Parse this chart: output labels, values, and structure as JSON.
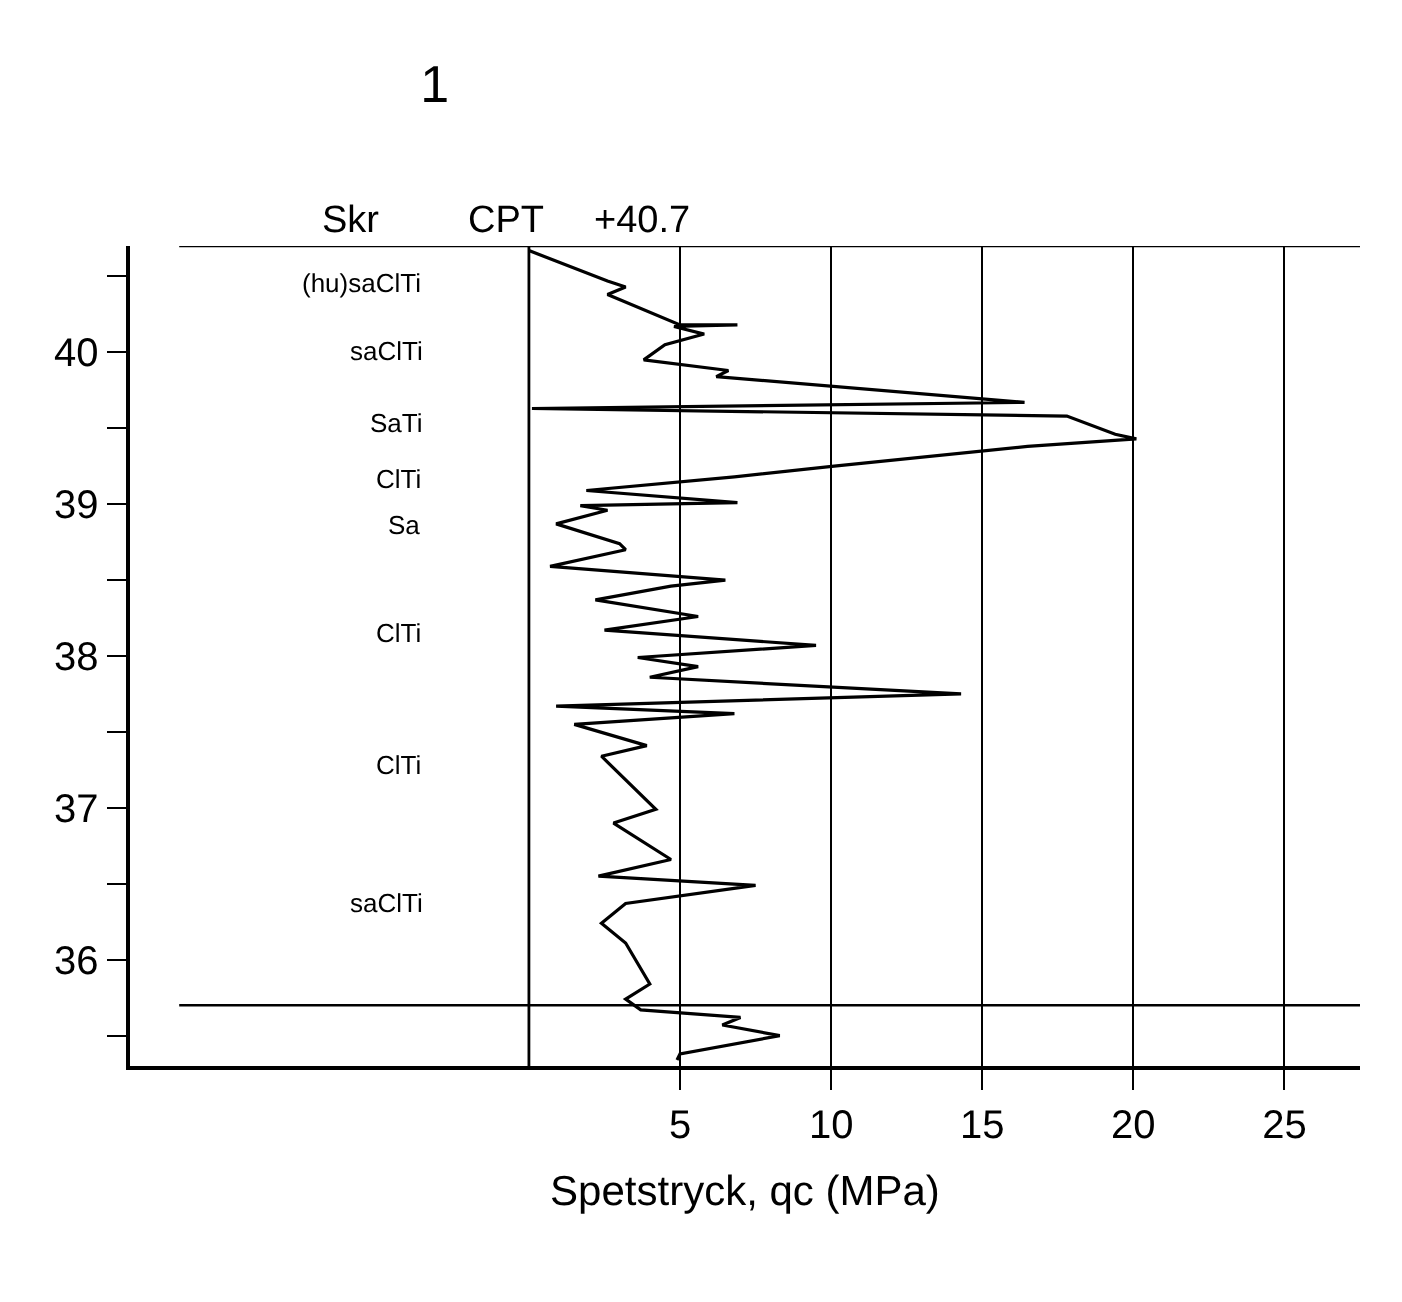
{
  "chart_data": {
    "type": "line",
    "title": "1",
    "xlabel": "Spetstryck, qc (MPa)",
    "xlim": [
      -13.2,
      27.5
    ],
    "xticks": [
      5,
      10,
      15,
      20,
      25
    ],
    "ylim": [
      35.3,
      40.7
    ],
    "yticks": [
      {
        "value": 35.5,
        "label": null
      },
      36,
      {
        "value": 36.5,
        "label": null
      },
      37,
      {
        "value": 37.5,
        "label": null
      },
      38,
      {
        "value": 38.5,
        "label": null
      },
      39,
      {
        "value": 39.5,
        "label": null
      },
      40,
      {
        "value": 40.5,
        "label": null
      }
    ],
    "grid": "x",
    "marker": "none",
    "line_style": "solid",
    "series": [
      {
        "color": "#000000",
        "x": [
          0,
          2.6,
          3.2,
          2.6,
          5.0,
          6.9,
          4.8,
          5.8,
          4.5,
          3.8,
          6.6,
          6.2,
          16.4,
          0.1,
          17.8,
          19.4,
          20.1,
          16.5,
          10.1,
          6.8,
          1.9,
          6.9,
          1.7,
          2.6,
          0.9,
          3.0,
          3.2,
          0.7,
          6.5,
          4.7,
          2.2,
          5.6,
          2.5,
          9.5,
          3.6,
          5.6,
          4.0,
          14.3,
          0.9,
          6.8,
          1.5,
          3.9,
          2.4,
          4.2,
          2.8,
          4.7,
          2.3,
          7.5,
          3.2,
          2.4,
          3.2,
          4.0,
          3.2,
          3.7,
          7.0,
          6.4,
          8.3,
          5.0,
          4.9
        ],
        "values": [
          40.67,
          40.47,
          40.43,
          40.38,
          40.18,
          40.18,
          40.17,
          40.12,
          40.05,
          39.95,
          39.88,
          39.84,
          39.67,
          39.63,
          39.58,
          39.46,
          39.43,
          39.38,
          39.25,
          39.18,
          39.09,
          39.01,
          38.99,
          38.96,
          38.87,
          38.74,
          38.7,
          38.59,
          38.5,
          38.46,
          38.37,
          38.26,
          38.17,
          38.07,
          37.99,
          37.93,
          37.86,
          37.75,
          37.67,
          37.62,
          37.55,
          37.41,
          37.34,
          36.99,
          36.9,
          36.66,
          36.55,
          36.49,
          36.37,
          36.24,
          36.11,
          35.84,
          35.74,
          35.67,
          35.62,
          35.57,
          35.5,
          35.38,
          35.34
        ]
      }
    ],
    "ref_lines": [
      {
        "axis": "y",
        "value": 40.7,
        "label": "+40.7"
      },
      {
        "axis": "y",
        "value": 35.7,
        "label": null
      },
      {
        "axis": "x",
        "value": 0,
        "label": null
      }
    ],
    "annotations": [
      "Skr",
      "CPT",
      "(hu)saClTi",
      "saClTi",
      "SaTi",
      "ClTi",
      "Sa",
      "ClTi",
      "ClTi",
      "saClTi"
    ]
  }
}
